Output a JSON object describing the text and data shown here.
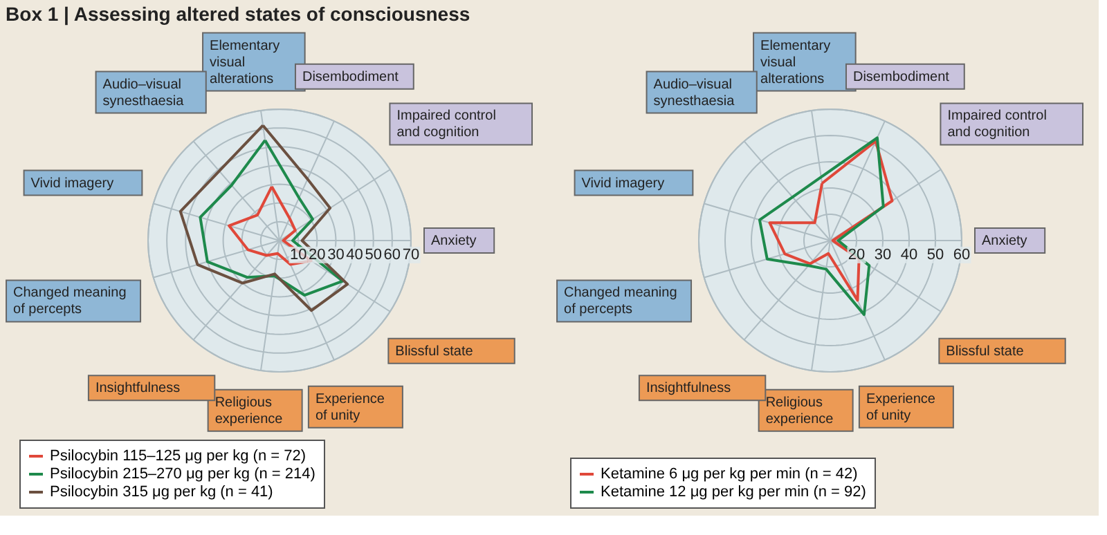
{
  "chart_data": [
    {
      "type": "radar",
      "title": "Box 1 | Assessing altered states of consciousness",
      "categories": [
        "Elementary visual alterations",
        "Disembodiment",
        "Impaired control and cognition",
        "Anxiety",
        "Blissful state",
        "Experience of unity",
        "Religious experience",
        "Insightfulness",
        "Changed meaning of percepts",
        "Vivid imagery",
        "Audio–visual synesthaesia"
      ],
      "ylim": [
        0,
        70
      ],
      "yticks": [
        10,
        20,
        30,
        40,
        50,
        60,
        70
      ],
      "grid": true,
      "legend": "bottom left",
      "series": [
        {
          "name": "Psilocybin 115–125 μg per kg (n = 72)",
          "color": "#e0483a",
          "values": [
            29,
            13,
            10,
            2,
            20,
            14,
            7,
            10.5,
            17.5,
            28,
            18
          ]
        },
        {
          "name": "Psilocybin 215–270 μg per kg (n = 214)",
          "color": "#1e8a4c",
          "values": [
            54,
            25,
            21,
            7,
            40,
            32,
            19,
            26,
            40,
            44,
            39
          ]
        },
        {
          "name": "Psilocybin 315 μg per kg (n = 41)",
          "color": "#6b5040",
          "values": [
            62,
            36,
            32,
            12,
            43,
            41,
            18,
            30,
            45.5,
            55,
            49
          ]
        }
      ]
    },
    {
      "type": "radar",
      "categories": [
        "Elementary visual alterations",
        "Disembodiment",
        "Impaired control and cognition",
        "Anxiety",
        "Blissful state",
        "Experience of unity",
        "Religious experience",
        "Insightfulness",
        "Changed meaning of percepts",
        "Vivid imagery",
        "Audio–visual synesthaesia"
      ],
      "ylim": [
        10,
        60
      ],
      "yticks": [
        20,
        30,
        40,
        50,
        60
      ],
      "grid": true,
      "legend": "bottom left",
      "series": [
        {
          "name": "Ketamine 6 μg per kg per min (n = 42)",
          "color": "#e0483a",
          "values": [
            32,
            51.6,
            38,
            11,
            23,
            35,
            15,
            21.7,
            28,
            34,
            19
          ]
        },
        {
          "name": "Ketamine 12 μg per kg per min (n = 92)",
          "color": "#1e8a4c",
          "values": [
            34.4,
            53,
            34,
            13,
            27.6,
            41,
            21,
            22.6,
            35,
            38,
            31.9
          ]
        }
      ]
    }
  ]
}
